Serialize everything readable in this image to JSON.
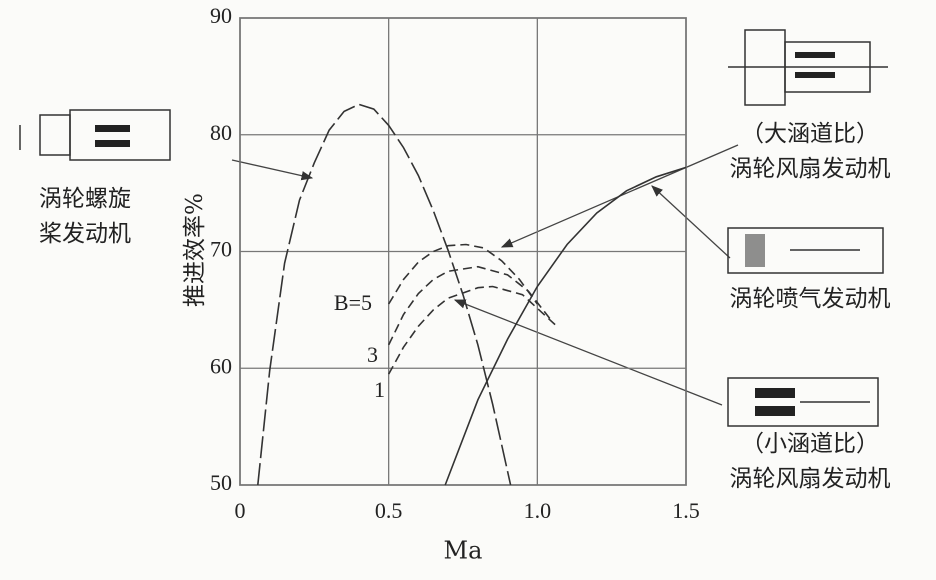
{
  "chart_data": {
    "type": "line",
    "xlabel": "Ma",
    "ylabel": "推进效率%",
    "xlim": [
      0,
      1.5
    ],
    "ylim": [
      50,
      90
    ],
    "xticks": [
      0,
      0.5,
      {
        "value": 1.0,
        "label": "1.0"
      },
      1.5
    ],
    "yticks": [
      50,
      60,
      70,
      80,
      90
    ],
    "grid": true,
    "series": [
      {
        "color": "#333333",
        "style": "dashed",
        "x": [
          0.06,
          0.1,
          0.15,
          0.2,
          0.25,
          0.3,
          0.35,
          0.4,
          0.45,
          0.5,
          0.55,
          0.6,
          0.65,
          0.7,
          0.75,
          0.8,
          0.85,
          0.91
        ],
        "values": [
          50,
          59.8,
          69,
          74.4,
          77.6,
          80.4,
          82,
          82.6,
          82.2,
          80.8,
          78.9,
          76.5,
          73.5,
          70.1,
          66.3,
          62,
          56.9,
          50
        ]
      },
      {
        "color": "#333333",
        "style": "solid",
        "x": [
          0.69,
          0.8,
          0.9,
          1.0,
          1.1,
          1.2,
          1.3,
          1.4,
          1.5
        ],
        "values": [
          50,
          57.3,
          62.5,
          67,
          70.6,
          73.3,
          75.2,
          76.4,
          77.2
        ]
      },
      {
        "name": "B=5",
        "color": "#333333",
        "style": "dashed",
        "x": [
          0.5,
          0.55,
          0.6,
          0.65,
          0.7,
          0.76,
          0.82,
          0.88,
          0.94,
          1.0
        ],
        "values": [
          65.5,
          67.6,
          69.1,
          70,
          70.5,
          70.6,
          70.3,
          69.2,
          67.6,
          65.5
        ]
      },
      {
        "name": "3",
        "color": "#333333",
        "style": "dashed",
        "x": [
          0.5,
          0.55,
          0.6,
          0.65,
          0.7,
          0.8,
          0.9,
          0.97,
          1.05
        ],
        "values": [
          62,
          64.6,
          66.4,
          67.6,
          68.3,
          68.7,
          68,
          66.6,
          64
        ]
      },
      {
        "name": "1",
        "color": "#333333",
        "style": "dashed",
        "x": [
          0.5,
          0.55,
          0.6,
          0.65,
          0.7,
          0.8,
          0.85,
          0.95,
          1.07
        ],
        "values": [
          59.5,
          61.8,
          63.6,
          65,
          66,
          66.9,
          67,
          66.3,
          63.5
        ]
      }
    ],
    "annotations": [
      "涡轮螺旋",
      "桨发动机",
      "（大涵道比）",
      "涡轮风扇发动机",
      "涡轮喷气发动机",
      "（小涵道比）",
      "涡轮风扇发动机"
    ]
  }
}
